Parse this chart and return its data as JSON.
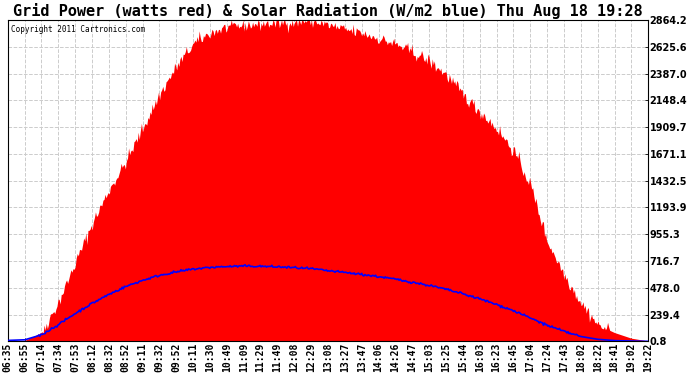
{
  "title": "Grid Power (watts red) & Solar Radiation (W/m2 blue) Thu Aug 18 19:28",
  "copyright": "Copyright 2011 Cartronics.com",
  "bg_color": "#ffffff",
  "plot_bg_color": "#ffffff",
  "grid_color": "#cccccc",
  "yticks": [
    0.8,
    239.4,
    478.0,
    716.7,
    955.3,
    1193.9,
    1432.5,
    1671.1,
    1909.7,
    2148.4,
    2387.0,
    2625.6,
    2864.2
  ],
  "ymin": 0.8,
  "ymax": 2864.2,
  "x_labels": [
    "06:35",
    "06:55",
    "07:14",
    "07:34",
    "07:53",
    "08:12",
    "08:32",
    "08:52",
    "09:11",
    "09:32",
    "09:52",
    "10:11",
    "10:30",
    "10:49",
    "11:09",
    "11:29",
    "11:49",
    "12:08",
    "12:29",
    "13:08",
    "13:27",
    "13:47",
    "14:06",
    "14:26",
    "14:47",
    "15:03",
    "15:25",
    "15:44",
    "16:03",
    "16:23",
    "16:45",
    "17:04",
    "17:24",
    "17:43",
    "18:02",
    "18:22",
    "18:41",
    "19:02",
    "19:22"
  ],
  "red_color": "#ff0000",
  "blue_color": "#0000ff",
  "title_fontsize": 11,
  "tick_fontsize": 7,
  "red_data": [
    5,
    10,
    80,
    350,
    700,
    1050,
    1350,
    1600,
    1900,
    2200,
    2450,
    2650,
    2750,
    2800,
    2820,
    2830,
    2840,
    2850,
    2860,
    2820,
    2780,
    2750,
    2700,
    2650,
    2580,
    2500,
    2380,
    2200,
    2050,
    1900,
    1700,
    1400,
    900,
    600,
    350,
    150,
    80,
    30,
    5
  ],
  "blue_data": [
    10,
    15,
    60,
    150,
    250,
    340,
    420,
    490,
    545,
    590,
    620,
    645,
    660,
    668,
    672,
    670,
    665,
    658,
    648,
    630,
    615,
    598,
    578,
    555,
    528,
    500,
    465,
    425,
    380,
    330,
    275,
    210,
    145,
    90,
    45,
    20,
    8,
    4,
    2
  ]
}
